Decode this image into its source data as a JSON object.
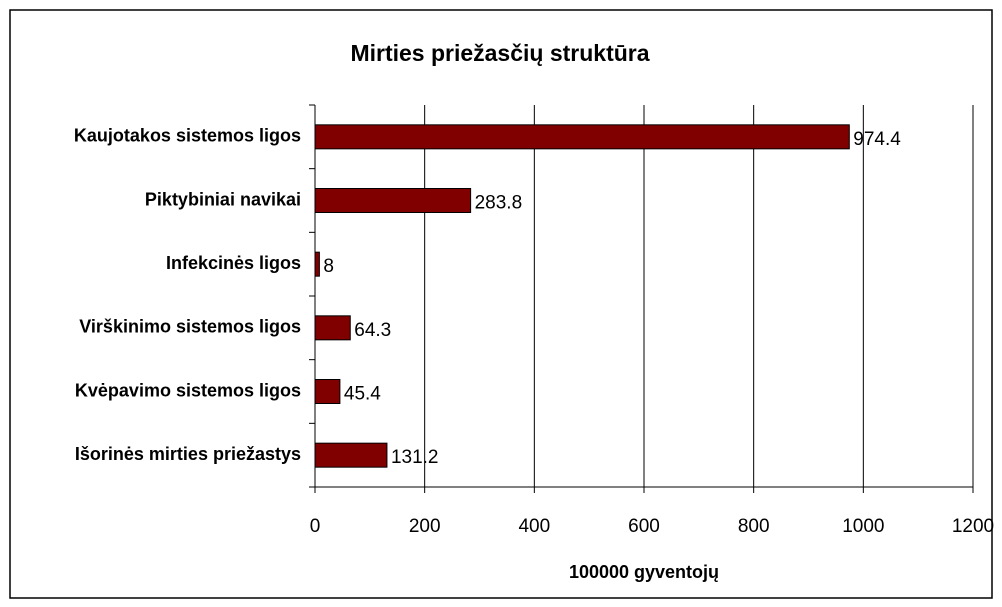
{
  "chart_data": {
    "type": "bar",
    "orientation": "horizontal",
    "title": "Mirties priežasčių struktūra",
    "x_label": "100000 gyventojų",
    "categories": [
      "Kaujotakos sistemos ligos",
      "Piktybiniai navikai",
      "Infekcinės ligos",
      "Virškinimo sistemos ligos",
      "Kvėpavimo sistemos ligos",
      "Išorinės mirties priežastys"
    ],
    "values": [
      974.4,
      283.8,
      8,
      64.3,
      45.4,
      131.2
    ],
    "color": "#800000",
    "xlim": [
      0,
      1200
    ],
    "xticks": [
      0,
      200,
      400,
      600,
      800,
      1000,
      1200
    ],
    "grid": true
  }
}
